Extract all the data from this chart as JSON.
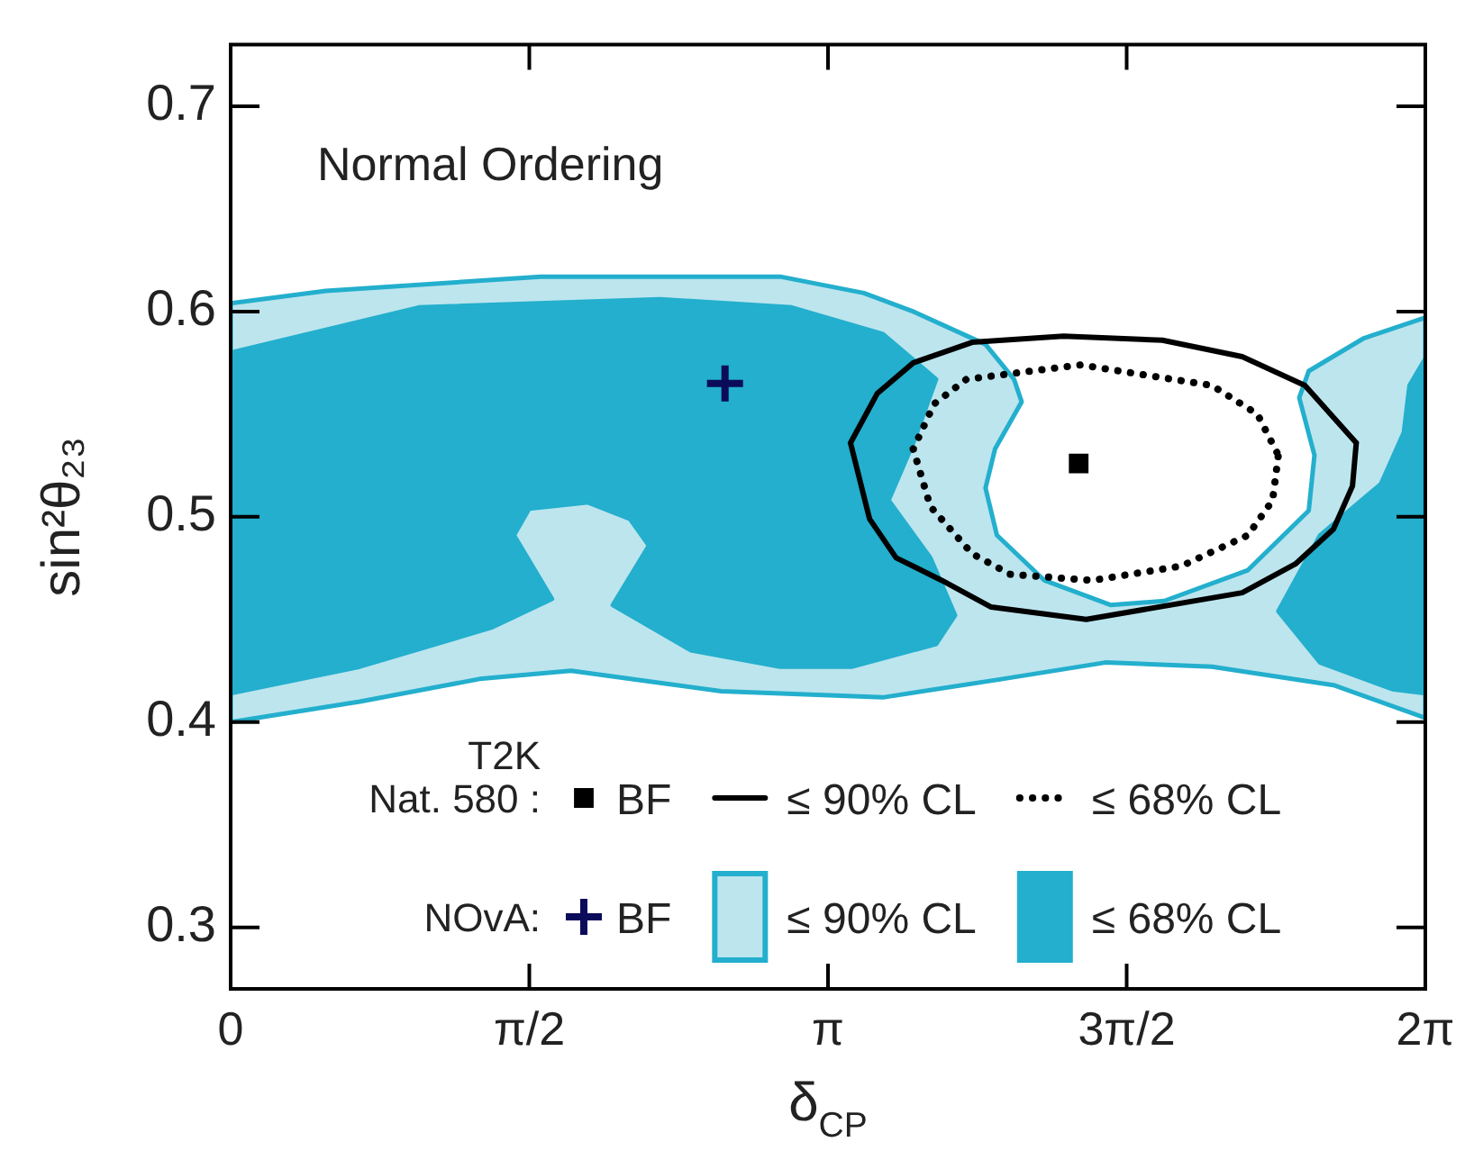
{
  "chart_data": {
    "type": "line",
    "xlabel": "δ$_{CP}$",
    "ylabel": "sin²θ₂₃",
    "annotations": [
      "Normal Ordering",
      "T2K\nNat. 580 :",
      "NOvA:"
    ],
    "xlim": [
      0,
      6.2832
    ],
    "xticks": [
      0,
      {
        "value": 1.5708,
        "label": "π/2"
      },
      {
        "value": 3.1416,
        "label": "π"
      },
      {
        "value": 4.7124,
        "label": "3π/2"
      },
      {
        "value": 6.2832,
        "label": "2π"
      }
    ],
    "ylim": [
      0.27,
      0.73
    ],
    "yticks": [
      0.3,
      0.4,
      0.5,
      0.6,
      0.7
    ],
    "grid": false,
    "legend": "bottom",
    "series": [
      {
        "name": "BF",
        "type": "scatter",
        "marker": "square",
        "color": "#000000",
        "x": [
          4.46
        ],
        "values": [
          0.526
        ]
      },
      {
        "name": "≤ 90% CL",
        "type": "line",
        "line_style": "solid",
        "color": "#000000",
        "x": [
          3.26,
          3.4,
          3.59,
          3.9,
          4.38,
          4.9,
          5.32,
          5.65,
          5.92,
          null,
          3.26,
          3.36,
          3.5,
          3.74,
          4.0,
          4.5,
          5.32,
          5.6,
          5.8,
          5.9,
          5.92
        ],
        "values": [
          0.536,
          0.56,
          0.575,
          0.585,
          0.588,
          0.586,
          0.578,
          0.564,
          0.536,
          null,
          0.536,
          0.499,
          0.48,
          0.469,
          0.456,
          0.45,
          0.463,
          0.477,
          0.494,
          0.515,
          0.536
        ]
      },
      {
        "name": "≤ 68% CL",
        "type": "line",
        "line_style": "dotted",
        "color": "#000000",
        "x": [
          3.59,
          3.7,
          3.87,
          4.47,
          5.16,
          5.4,
          5.51,
          null,
          3.59,
          3.68,
          3.9,
          4.1,
          4.53,
          5.0,
          5.35,
          5.48,
          5.51
        ],
        "values": [
          0.533,
          0.555,
          0.567,
          0.574,
          0.564,
          0.55,
          0.53,
          null,
          0.533,
          0.505,
          0.482,
          0.472,
          0.469,
          0.476,
          0.491,
          0.508,
          0.53
        ]
      },
      {
        "name": "BF",
        "type": "scatter",
        "marker": "cross",
        "color": "#0b0b5c",
        "x": [
          2.6
        ],
        "values": [
          0.565
        ]
      },
      {
        "name": "≤ 90% CL",
        "type": "area",
        "color": "#bde5ee",
        "x": [
          0,
          0.5,
          1.63,
          2.89,
          3.33,
          3.59,
          3.97,
          4.12,
          4.16,
          4.02,
          3.97,
          4.03,
          4.28,
          4.63,
          4.91,
          5.35,
          5.67,
          5.7,
          5.62,
          5.67,
          5.96,
          6.2832,
          6.2832,
          5.8,
          5.16,
          4.6,
          4.06,
          3.43,
          2.58,
          1.79,
          1.31,
          0.68,
          0,
          0
        ],
        "values": [
          0.604,
          0.61,
          0.617,
          0.617,
          0.609,
          0.6,
          0.584,
          0.567,
          0.556,
          0.533,
          0.514,
          0.491,
          0.469,
          0.457,
          0.459,
          0.474,
          0.503,
          0.53,
          0.558,
          0.571,
          0.587,
          0.597,
          0.402,
          0.418,
          0.427,
          0.429,
          0.421,
          0.412,
          0.415,
          0.425,
          0.421,
          0.41,
          0.4,
          0.604
        ]
      },
      {
        "name": "≤ 68% CL",
        "type": "area",
        "color": "#23afcd",
        "x": [
          0,
          0.99,
          2.26,
          2.95,
          3.43,
          3.71,
          3.59,
          3.46,
          3.68,
          3.81,
          3.71,
          3.27,
          2.89,
          2.42,
          2.01,
          2.2,
          2.1,
          1.88,
          1.57,
          1.49,
          1.69,
          1.37,
          0.68,
          0,
          0,
          null,
          6.2832,
          6.2,
          6.17,
          6.05,
          5.73,
          5.51,
          5.73,
          6.11,
          6.2832,
          6.2832
        ],
        "values": [
          0.58,
          0.602,
          0.606,
          0.602,
          0.589,
          0.567,
          0.536,
          0.508,
          0.48,
          0.452,
          0.438,
          0.427,
          0.427,
          0.435,
          0.457,
          0.486,
          0.499,
          0.507,
          0.504,
          0.491,
          0.46,
          0.446,
          0.427,
          0.414,
          0.58,
          null,
          0.577,
          0.564,
          0.541,
          0.516,
          0.491,
          0.454,
          0.429,
          0.416,
          0.414,
          0.577
        ]
      }
    ]
  }
}
